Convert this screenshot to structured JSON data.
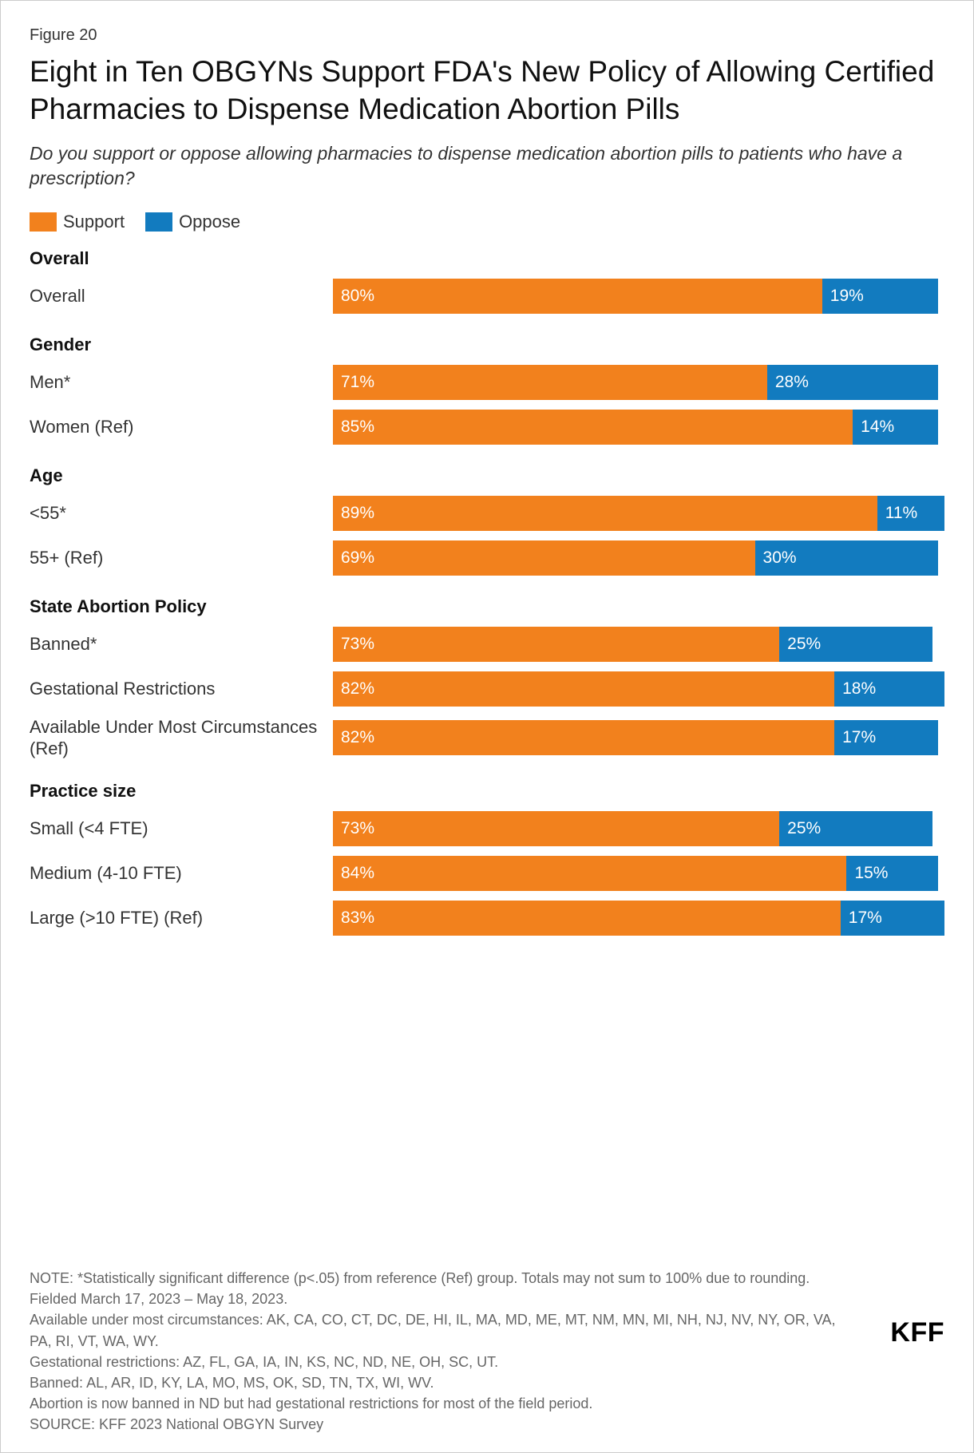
{
  "colors": {
    "support": "#f2811d",
    "oppose": "#127bbf",
    "border": "#cccccc",
    "text": "#333333",
    "title": "#101010",
    "note": "#666666",
    "bar_text": "#ffffff"
  },
  "figure_number": "Figure 20",
  "title": "Eight in Ten OBGYNs Support FDA's New Policy of Allowing Certified Pharmacies to Dispense Medication Abortion Pills",
  "subtitle": "Do you support or oppose allowing pharmacies to dispense medication abortion pills to patients who have a prescription?",
  "legend": [
    {
      "label": "Support",
      "color_key": "support"
    },
    {
      "label": "Oppose",
      "color_key": "oppose"
    }
  ],
  "groups": [
    {
      "header": "Overall",
      "rows": [
        {
          "label": "Overall",
          "support": 80,
          "oppose": 19
        }
      ]
    },
    {
      "header": "Gender",
      "rows": [
        {
          "label": "Men*",
          "support": 71,
          "oppose": 28
        },
        {
          "label": "Women (Ref)",
          "support": 85,
          "oppose": 14
        }
      ]
    },
    {
      "header": "Age",
      "rows": [
        {
          "label": "<55*",
          "support": 89,
          "oppose": 11
        },
        {
          "label": "55+ (Ref)",
          "support": 69,
          "oppose": 30
        }
      ]
    },
    {
      "header": "State Abortion Policy",
      "rows": [
        {
          "label": "Banned*",
          "support": 73,
          "oppose": 25
        },
        {
          "label": "Gestational Restrictions",
          "support": 82,
          "oppose": 18
        },
        {
          "label": "Available Under Most Circumstances (Ref)",
          "support": 82,
          "oppose": 17
        }
      ]
    },
    {
      "header": "Practice size",
      "rows": [
        {
          "label": "Small (<4 FTE)",
          "support": 73,
          "oppose": 25
        },
        {
          "label": "Medium (4-10 FTE)",
          "support": 84,
          "oppose": 15
        },
        {
          "label": "Large (>10 FTE) (Ref)",
          "support": 83,
          "oppose": 17
        }
      ]
    }
  ],
  "notes": [
    "NOTE: *Statistically significant difference (p<.05) from reference (Ref) group. Totals may not sum to 100% due to rounding.",
    "Fielded March 17, 2023 – May 18, 2023.",
    "Available under most circumstances: AK, CA, CO, CT, DC, DE, HI, IL, MA, MD, ME, MT, NM, MN, MI, NH, NJ, NV, NY, OR, VA, PA, RI, VT, WA, WY.",
    "Gestational restrictions: AZ, FL, GA, IA, IN, KS, NC, ND, NE, OH, SC, UT.",
    "Banned: AL, AR, ID, KY, LA, MO, MS, OK, SD, TN, TX, WI, WV.",
    "Abortion is now banned in ND but had gestational restrictions for most of the field period.",
    "SOURCE: KFF 2023 National OBGYN Survey"
  ],
  "logo": "KFF",
  "bar_max": 100
}
